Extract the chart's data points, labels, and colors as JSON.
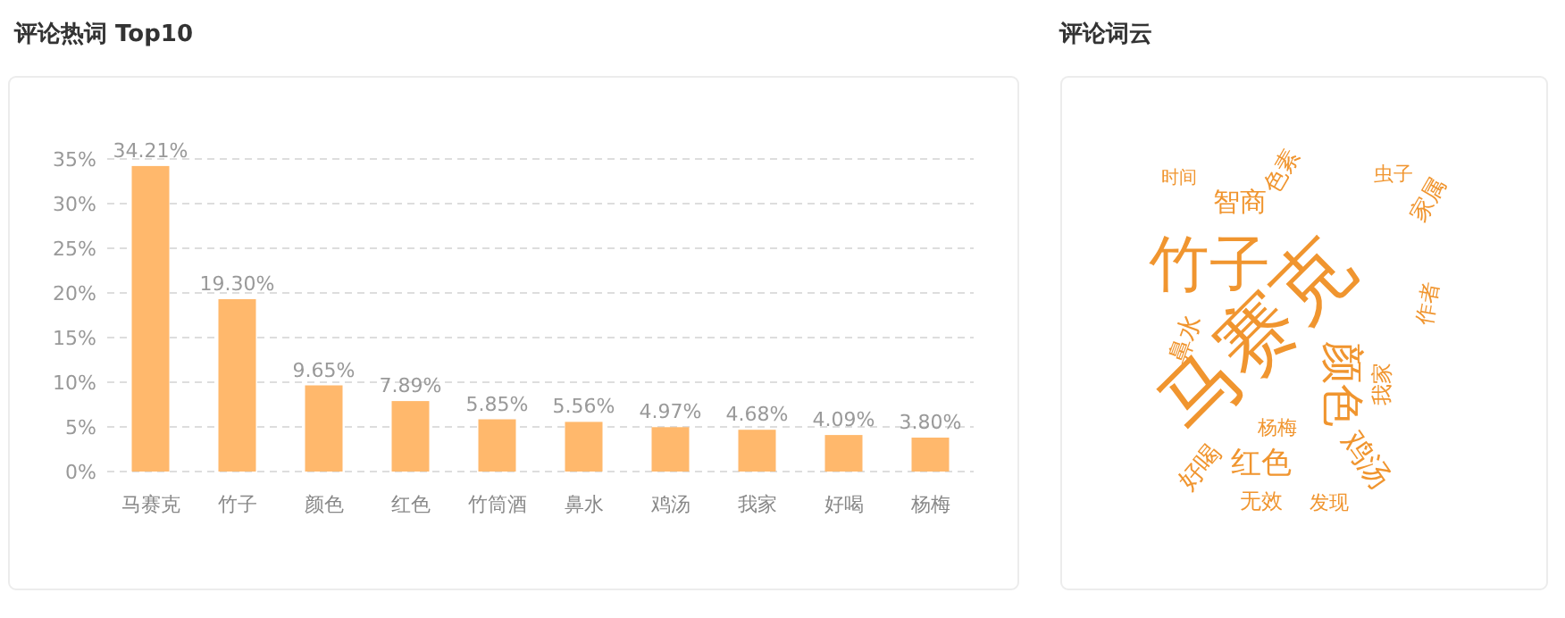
{
  "chart_data": [
    {
      "type": "bar",
      "title": "评论热词 Top10",
      "categories": [
        "马赛克",
        "竹子",
        "颜色",
        "红色",
        "竹筒酒",
        "鼻水",
        "鸡汤",
        "我家",
        "好喝",
        "杨梅"
      ],
      "values": [
        34.21,
        19.3,
        9.65,
        7.89,
        5.85,
        5.56,
        4.97,
        4.68,
        4.09,
        3.8
      ],
      "value_labels": [
        "34.21%",
        "19.30%",
        "9.65%",
        "7.89%",
        "5.85%",
        "5.56%",
        "4.97%",
        "4.68%",
        "4.09%",
        "3.80%"
      ],
      "color": "#ffb86c",
      "ylim": [
        0,
        35
      ],
      "yticks": [
        {
          "value": 0,
          "label": "0%"
        },
        {
          "value": 5,
          "label": "5%"
        },
        {
          "value": 10,
          "label": "10%"
        },
        {
          "value": 15,
          "label": "15%"
        },
        {
          "value": 20,
          "label": "20%"
        },
        {
          "value": 25,
          "label": "25%"
        },
        {
          "value": 30,
          "label": "30%"
        },
        {
          "value": 35,
          "label": "35%"
        }
      ],
      "grid": "y"
    },
    {
      "type": "other",
      "title": "评论词云",
      "annotations": [
        "马赛克",
        "竹子",
        "颜色",
        "红色",
        "鸡汤",
        "智商",
        "时间",
        "色素",
        "虫子",
        "家属",
        "鼻水",
        "杨梅",
        "我家",
        "作者",
        "好喝",
        "无效",
        "发现"
      ]
    }
  ]
}
